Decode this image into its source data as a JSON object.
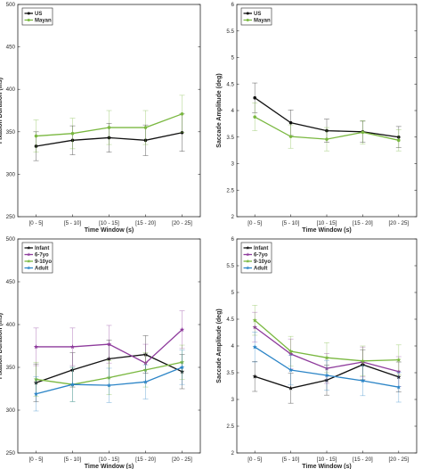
{
  "chart_data": [
    {
      "type": "line",
      "categories": [
        "[0 - 5]",
        "[5 - 10]",
        "[10 - 15]",
        "[15 - 20]",
        "[20 - 25]"
      ],
      "xlabel": "Time Window (s)",
      "ylabel": "Fixation Duration (ms)",
      "ylim": [
        250,
        500
      ],
      "yticks": [
        250,
        300,
        350,
        400,
        450,
        500
      ],
      "legend_position": "top-left",
      "series": [
        {
          "name": "US",
          "color": "#111111",
          "marker": "circle",
          "values": [
            333,
            340,
            343,
            340,
            349
          ],
          "errors": [
            17,
            17,
            17,
            18,
            22
          ]
        },
        {
          "name": "Mayan",
          "color": "#7ab840",
          "marker": "circle",
          "values": [
            345,
            348,
            355,
            355,
            371
          ],
          "errors": [
            19,
            18,
            20,
            20,
            22
          ]
        }
      ]
    },
    {
      "type": "line",
      "categories": [
        "[0 - 5]",
        "[5 - 10]",
        "[10 - 15]",
        "[15 - 20]",
        "[20 - 25]"
      ],
      "xlabel": "Time Window (s)",
      "ylabel": "Saccade Amplitude (deg)",
      "ylim": [
        2,
        6
      ],
      "yticks": [
        2,
        2.5,
        3,
        3.5,
        4,
        4.5,
        5,
        5.5,
        6
      ],
      "legend_position": "top-left",
      "series": [
        {
          "name": "US",
          "color": "#111111",
          "marker": "circle",
          "values": [
            4.24,
            3.77,
            3.62,
            3.6,
            3.5
          ],
          "errors": [
            0.28,
            0.24,
            0.22,
            0.2,
            0.2
          ]
        },
        {
          "name": "Mayan",
          "color": "#7ab840",
          "marker": "circle",
          "values": [
            3.88,
            3.51,
            3.46,
            3.59,
            3.44
          ],
          "errors": [
            0.26,
            0.22,
            0.22,
            0.22,
            0.2
          ]
        }
      ]
    },
    {
      "type": "line",
      "categories": [
        "[0 - 5]",
        "[5 - 10]",
        "[10 - 15]",
        "[15 - 20]",
        "[20 - 25]"
      ],
      "xlabel": "Time Window (s)",
      "ylabel": "Fixation Duration (ms)",
      "ylim": [
        250,
        500
      ],
      "yticks": [
        250,
        300,
        350,
        400,
        450,
        500
      ],
      "legend_position": "top-left",
      "series": [
        {
          "name": "Infant",
          "color": "#111111",
          "marker": "star",
          "values": [
            332,
            347,
            360,
            365,
            345
          ],
          "errors": [
            22,
            20,
            22,
            22,
            20
          ]
        },
        {
          "name": "6-7yo",
          "color": "#8e3b9c",
          "marker": "star",
          "values": [
            374,
            374,
            377,
            355,
            394
          ],
          "errors": [
            22,
            22,
            22,
            22,
            22
          ]
        },
        {
          "name": "9-10yo",
          "color": "#7ab840",
          "marker": "star",
          "values": [
            336,
            330,
            338,
            347,
            356
          ],
          "errors": [
            20,
            20,
            20,
            20,
            20
          ]
        },
        {
          "name": "Adult",
          "color": "#2c85c7",
          "marker": "star",
          "values": [
            319,
            330,
            329,
            333,
            350
          ],
          "errors": [
            20,
            20,
            20,
            20,
            20
          ]
        }
      ]
    },
    {
      "type": "line",
      "categories": [
        "[0 - 5]",
        "[5 - 10]",
        "[10 - 15]",
        "[15 - 20]",
        "[20 - 25]"
      ],
      "xlabel": "Time Window (s)",
      "ylabel": "Saccade Amplitude (deg)",
      "ylim": [
        2,
        6
      ],
      "yticks": [
        2,
        2.5,
        3,
        3.5,
        4,
        4.5,
        5,
        5.5,
        6
      ],
      "legend_position": "top-left",
      "series": [
        {
          "name": "Infant",
          "color": "#111111",
          "marker": "star",
          "values": [
            3.43,
            3.21,
            3.36,
            3.65,
            3.42
          ],
          "errors": [
            0.28,
            0.28,
            0.28,
            0.28,
            0.28
          ]
        },
        {
          "name": "6-7yo",
          "color": "#8e3b9c",
          "marker": "star",
          "values": [
            4.35,
            3.85,
            3.58,
            3.7,
            3.52
          ],
          "errors": [
            0.28,
            0.28,
            0.28,
            0.28,
            0.28
          ]
        },
        {
          "name": "9-10yo",
          "color": "#7ab840",
          "marker": "star",
          "values": [
            4.48,
            3.9,
            3.78,
            3.72,
            3.74
          ],
          "errors": [
            0.28,
            0.28,
            0.28,
            0.28,
            0.28
          ]
        },
        {
          "name": "Adult",
          "color": "#2c85c7",
          "marker": "star",
          "values": [
            3.98,
            3.55,
            3.45,
            3.35,
            3.23
          ],
          "errors": [
            0.28,
            0.28,
            0.28,
            0.28,
            0.28
          ]
        }
      ]
    }
  ]
}
